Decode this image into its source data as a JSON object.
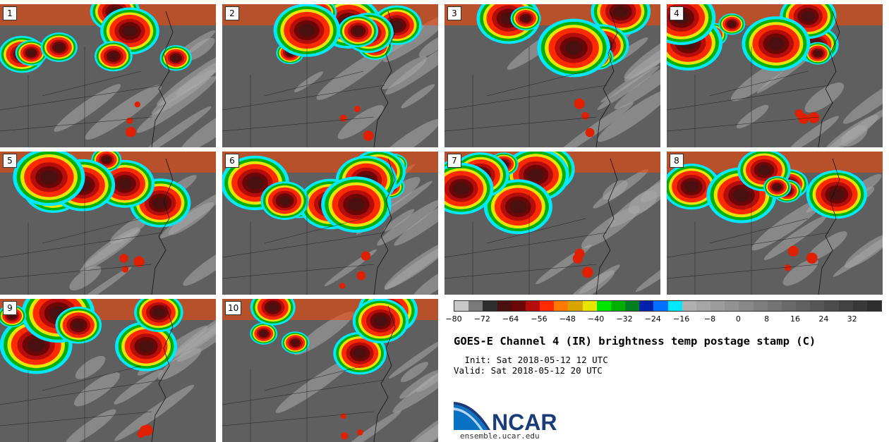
{
  "panels": [
    {
      "label": "1"
    },
    {
      "label": "2"
    },
    {
      "label": "3"
    },
    {
      "label": "4"
    },
    {
      "label": "5"
    },
    {
      "label": "6"
    },
    {
      "label": "7"
    },
    {
      "label": "8"
    },
    {
      "label": "9"
    },
    {
      "label": "10"
    }
  ],
  "colorbar": {
    "min": -80,
    "max": 40,
    "ticks": [
      "−80",
      "−72",
      "−64",
      "−56",
      "−48",
      "−40",
      "−32",
      "−24",
      "−16",
      "−8",
      "0",
      "8",
      "16",
      "24",
      "32"
    ],
    "colors": [
      "#c8c8c8",
      "#7a7a7a",
      "#2e2e2e",
      "#4a1010",
      "#6b0707",
      "#b50c0c",
      "#ff2a00",
      "#ff7a00",
      "#d9a500",
      "#e6e600",
      "#00e600",
      "#00b000",
      "#008020",
      "#0022aa",
      "#0070ff",
      "#00e8ff",
      "#b0b0b0",
      "#a6a6a6",
      "#9c9c9c",
      "#929292",
      "#888888",
      "#7e7e7e",
      "#747474",
      "#6a6a6a",
      "#606060",
      "#565656",
      "#4c4c4c",
      "#424242",
      "#383838",
      "#2e2e2e"
    ]
  },
  "title": "GOES-E Channel 4 (IR) brightness temp postage stamp (C)",
  "init_line": " Init: Sat 2018-05-12 12 UTC",
  "valid_line": "Valid: Sat 2018-05-12 20 UTC",
  "logo": {
    "text": "NCAR",
    "url": "ensemble.ucar.edu",
    "color": "#1a3c7a"
  }
}
